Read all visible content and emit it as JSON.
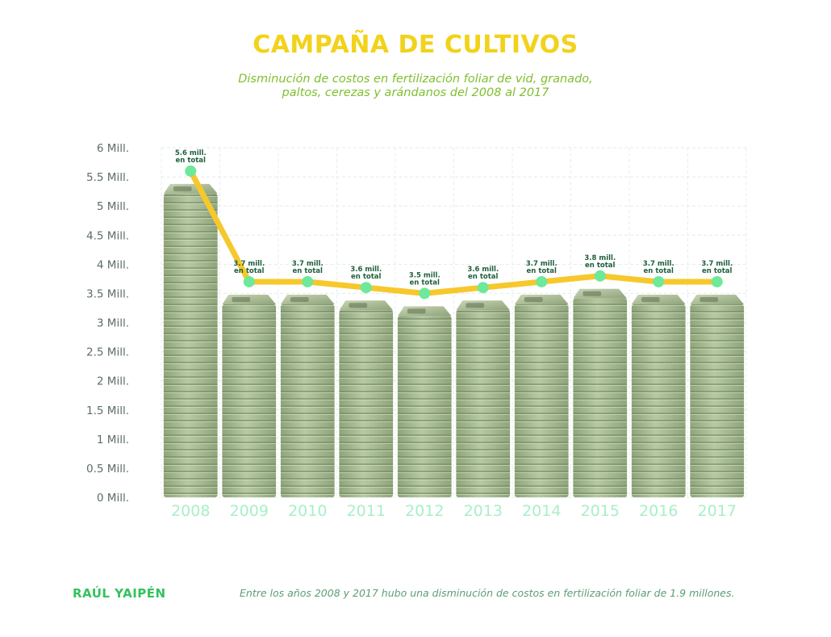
{
  "title": "CAMPAÑA DE CULTIVOS",
  "subtitle_line1": "Disminución de costos en fertilización foliar de vid, granado,",
  "subtitle_line2": "paltos, cerezas y arándanos del 2008 al 2017",
  "author": "RAÚL YAIPÉN",
  "footnote": "Entre los años 2008 y 2017 hubo una disminución de costos en fertilización foliar de 1.9 millones.",
  "colors": {
    "title": "#f2d21a",
    "line": "#f6c82c",
    "marker": "#6ee89a",
    "money": "#a3b98c",
    "xtick": "#a8efc6"
  },
  "chart_data": {
    "type": "bar",
    "overlay": "line",
    "categories": [
      "2008",
      "2009",
      "2010",
      "2011",
      "2012",
      "2013",
      "2014",
      "2015",
      "2016",
      "2017"
    ],
    "values": [
      5.6,
      3.7,
      3.7,
      3.6,
      3.5,
      3.6,
      3.7,
      3.8,
      3.7,
      3.7
    ],
    "data_labels": [
      [
        "5.6 mill.",
        "en total"
      ],
      [
        "3.7 mill.",
        "en total"
      ],
      [
        "3.7 mill.",
        "en total"
      ],
      [
        "3.6 mill.",
        "en total"
      ],
      [
        "3.5 mill.",
        "en total"
      ],
      [
        "3.6 mill.",
        "en total"
      ],
      [
        "3.7 mill.",
        "en total"
      ],
      [
        "3.8 mill.",
        "en total"
      ],
      [
        "3.7 mill.",
        "en total"
      ],
      [
        "3.7 mill.",
        "en total"
      ]
    ],
    "y_ticks": [
      0,
      0.5,
      1,
      1.5,
      2,
      2.5,
      3,
      3.5,
      4,
      4.5,
      5,
      5.5,
      6
    ],
    "y_tick_labels": [
      "0 Mill.",
      "0.5 Mill.",
      "1 Mill.",
      "1.5 Mill.",
      "2 Mill.",
      "2.5 Mill.",
      "3 Mill.",
      "3.5 Mill.",
      "4 Mill.",
      "4.5 Mill.",
      "5 Mill.",
      "5.5 Mill.",
      "6 Mill."
    ],
    "ylim": [
      0,
      6
    ],
    "grid": true,
    "legend": "none"
  }
}
